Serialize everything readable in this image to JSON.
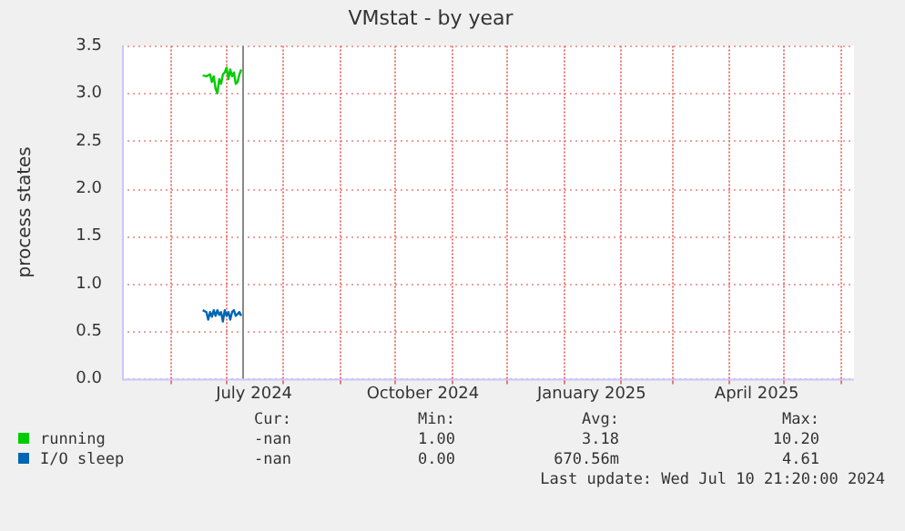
{
  "chart_data": {
    "type": "line",
    "title": "VMstat - by year",
    "ylabel": "process states",
    "xlim": [
      "2024-05-05",
      "2025-06-08"
    ],
    "xticks": [
      {
        "value": "2024-06-01",
        "label": null
      },
      {
        "value": "2024-07-01",
        "label": null
      },
      {
        "value": "2024-07-16",
        "label": "July 2024"
      },
      {
        "value": "2024-08-01",
        "label": null
      },
      {
        "value": "2024-09-01",
        "label": null
      },
      {
        "value": "2024-10-01",
        "label": null
      },
      {
        "value": "2024-10-16",
        "label": "October 2024"
      },
      {
        "value": "2024-11-01",
        "label": null
      },
      {
        "value": "2024-12-01",
        "label": null
      },
      {
        "value": "2025-01-01",
        "label": null
      },
      {
        "value": "2025-01-16",
        "label": "January 2025"
      },
      {
        "value": "2025-02-01",
        "label": null
      },
      {
        "value": "2025-03-01",
        "label": null
      },
      {
        "value": "2025-04-01",
        "label": null
      },
      {
        "value": "2025-04-16",
        "label": "April 2025"
      },
      {
        "value": "2025-05-01",
        "label": null
      },
      {
        "value": "2025-06-01",
        "label": null
      }
    ],
    "ylim": [
      0,
      3.5
    ],
    "yticks": [
      {
        "value": 0,
        "label": "0.0"
      },
      {
        "value": 0.5,
        "label": "0.5"
      },
      {
        "value": 1,
        "label": "1.0"
      },
      {
        "value": 1.5,
        "label": "1.5"
      },
      {
        "value": 2,
        "label": "2.0"
      },
      {
        "value": 2.5,
        "label": "2.5"
      },
      {
        "value": 3,
        "label": "3.0"
      },
      {
        "value": 3.5,
        "label": "3.5"
      }
    ],
    "grid": true,
    "legend": "bottom left",
    "x": [
      "2024-06-18",
      "2024-06-20",
      "2024-06-21",
      "2024-06-22",
      "2024-06-23",
      "2024-06-24",
      "2024-06-25",
      "2024-06-26",
      "2024-06-27",
      "2024-06-28",
      "2024-06-29",
      "2024-06-30",
      "2024-07-01",
      "2024-07-02",
      "2024-07-03",
      "2024-07-04",
      "2024-07-05",
      "2024-07-06",
      "2024-07-07",
      "2024-07-08",
      "2024-07-09"
    ],
    "series": [
      {
        "name": "running",
        "color": "#00cc00",
        "values": [
          3.19,
          3.18,
          3.19,
          3.2,
          3.12,
          3.18,
          3.05,
          3.0,
          3.15,
          3.1,
          3.2,
          3.22,
          3.27,
          3.15,
          3.25,
          3.18,
          3.22,
          3.1,
          3.12,
          3.2,
          3.25
        ]
      },
      {
        "name": "I/O sleep",
        "color": "#0066b3",
        "values": [
          0.72,
          0.7,
          0.62,
          0.7,
          0.65,
          0.72,
          0.66,
          0.72,
          0.67,
          0.7,
          0.6,
          0.72,
          0.66,
          0.7,
          0.62,
          0.7,
          0.72,
          0.66,
          0.68,
          0.7,
          0.66
        ]
      }
    ],
    "ref_lines": [
      {
        "axis": "x",
        "value": "2024-07-10",
        "color": "#888888"
      }
    ],
    "annotations": [
      "Cur:",
      "Min:",
      "Avg:",
      "Max:",
      "-nan",
      "1.00",
      "3.18",
      "10.20",
      "-nan",
      "0.00",
      "670.56m",
      "4.61",
      "Last update: Wed Jul 10 21:20:00 2024"
    ]
  }
}
